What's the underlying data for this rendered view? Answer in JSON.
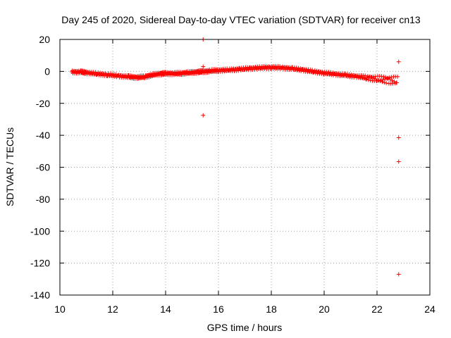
{
  "chart_data": {
    "type": "scatter",
    "title": "Day 245 of 2020, Sidereal Day-to-day VTEC variation (SDTVAR) for receiver cn13",
    "xlabel": "GPS time / hours",
    "ylabel": "SDTVAR / TECUs",
    "xlim": [
      10,
      24
    ],
    "ylim": [
      -140,
      20
    ],
    "xticks": [
      10,
      12,
      14,
      16,
      18,
      20,
      22,
      24
    ],
    "yticks": [
      -140,
      -120,
      -100,
      -80,
      -60,
      -40,
      -20,
      0,
      20
    ],
    "grid": true,
    "marker": "+",
    "color": "#ff0000",
    "series": [
      {
        "name": "SDTVAR",
        "trend": [
          [
            10.45,
            -0.3
          ],
          [
            10.8,
            -0.4
          ],
          [
            11.0,
            -0.8
          ],
          [
            11.4,
            -1.5
          ],
          [
            11.8,
            -2.1
          ],
          [
            12.2,
            -2.8
          ],
          [
            12.6,
            -3.4
          ],
          [
            12.9,
            -3.8
          ],
          [
            13.2,
            -3.4
          ],
          [
            13.5,
            -2.2
          ],
          [
            13.8,
            -1.5
          ],
          [
            14.0,
            -1.3
          ],
          [
            14.3,
            -1.4
          ],
          [
            14.6,
            -1.2
          ],
          [
            14.9,
            -0.8
          ],
          [
            15.2,
            -0.4
          ],
          [
            15.4,
            -0.2
          ],
          [
            15.7,
            0.3
          ],
          [
            16.0,
            0.6
          ],
          [
            16.4,
            0.9
          ],
          [
            16.8,
            1.3
          ],
          [
            17.2,
            1.8
          ],
          [
            17.6,
            2.3
          ],
          [
            18.0,
            2.5
          ],
          [
            18.4,
            2.3
          ],
          [
            18.8,
            1.7
          ],
          [
            19.2,
            0.9
          ],
          [
            19.6,
            -0.1
          ],
          [
            20.0,
            -1.0
          ],
          [
            20.4,
            -1.7
          ],
          [
            20.8,
            -2.4
          ],
          [
            21.2,
            -3.1
          ],
          [
            21.6,
            -3.9
          ],
          [
            22.0,
            -4.7
          ],
          [
            22.4,
            -5.3
          ],
          [
            22.8,
            -6.0
          ]
        ],
        "outliers": [
          [
            15.42,
            20
          ],
          [
            15.42,
            3
          ],
          [
            15.42,
            -27.5
          ],
          [
            22.82,
            6
          ],
          [
            22.82,
            -41.5
          ],
          [
            22.82,
            -56.5
          ],
          [
            22.82,
            -127
          ]
        ]
      }
    ]
  }
}
